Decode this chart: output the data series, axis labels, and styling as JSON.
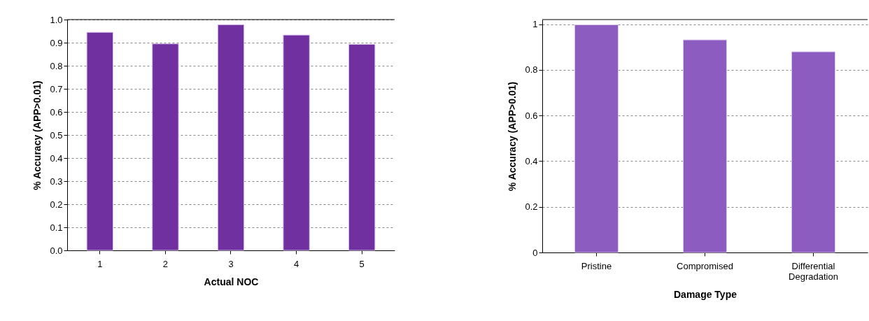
{
  "chart_data": [
    {
      "type": "bar",
      "xlabel": "Actual NOC",
      "ylabel": "% Accuracy (APP>0.01)",
      "categories": [
        "1",
        "2",
        "3",
        "4",
        "5"
      ],
      "values": [
        0.945,
        0.895,
        0.978,
        0.933,
        0.893
      ],
      "color": "#7030a0",
      "ylim": [
        0,
        1.0
      ],
      "yticks": [
        {
          "value": 0,
          "label": "0.0"
        },
        0.1,
        0.2,
        0.3,
        0.4,
        0.5,
        0.6,
        0.7,
        0.8,
        0.9,
        {
          "value": 1,
          "label": "1.0"
        }
      ],
      "grid": "y"
    },
    {
      "type": "bar",
      "xlabel": "Damage Type",
      "ylabel": "% Accuracy (APP>0.01)",
      "categories": [
        "Pristine",
        "Compromised",
        "Differential Degradation"
      ],
      "values": [
        0.997,
        0.931,
        0.879
      ],
      "color": "#8c5cc0",
      "ylim": [
        0,
        1.02
      ],
      "yticks": [
        0,
        0.2,
        0.4,
        0.6,
        0.8,
        1
      ],
      "grid": "y"
    }
  ]
}
